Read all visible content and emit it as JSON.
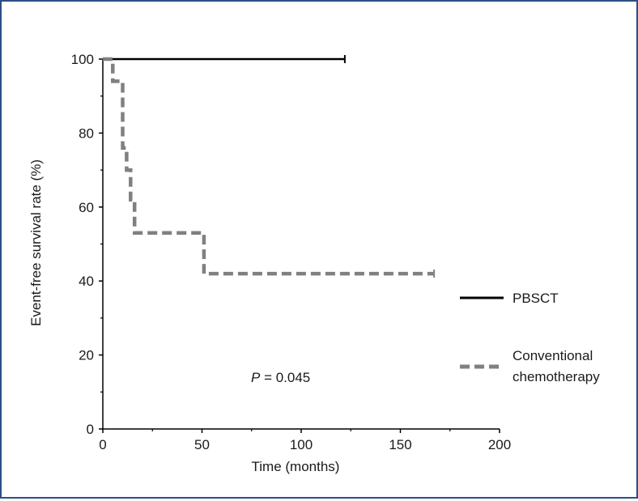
{
  "chart_data": {
    "type": "line",
    "xlabel": "Time (months)",
    "ylabel": "Event-free survival rate (%)",
    "xlim": [
      0,
      200
    ],
    "ylim": [
      0,
      100
    ],
    "xticks": [
      0,
      50,
      100,
      150,
      200
    ],
    "yticks": [
      0,
      20,
      40,
      60,
      80,
      100
    ],
    "grid": false,
    "legend_position": "right",
    "annotation": {
      "prefix": "P",
      "text": " = 0.045"
    },
    "series": [
      {
        "name": "PBSCT",
        "style": "solid",
        "color": "#000000",
        "x": [
          0,
          122
        ],
        "y": [
          100,
          100
        ]
      },
      {
        "name": "Conventional chemotherapy",
        "style": "dashed",
        "color": "#808080",
        "x": [
          0,
          5,
          5,
          10,
          10,
          12,
          12,
          14,
          14,
          16,
          16,
          51,
          51,
          167
        ],
        "y": [
          100,
          100,
          94,
          94,
          76,
          76,
          70,
          70,
          62,
          62,
          53,
          53,
          42,
          42
        ]
      }
    ]
  }
}
